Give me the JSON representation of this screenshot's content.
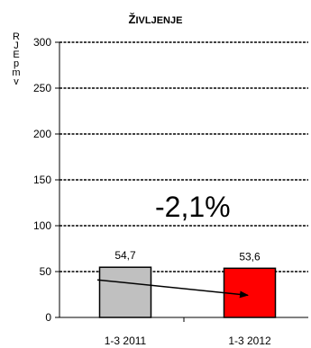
{
  "chart_data": {
    "type": "bar",
    "title": "Življenje",
    "ylabel": "RJEpmv",
    "categories": [
      "1-3 2011",
      "1-3 2012"
    ],
    "values": [
      54.7,
      53.6
    ],
    "value_labels": [
      "54,7",
      "53,6"
    ],
    "ylim": [
      0,
      300
    ],
    "yticks": [
      0,
      50,
      100,
      150,
      200,
      250,
      300
    ],
    "gridlines": "dashed",
    "bar_colors": [
      "#c0c0c0",
      "#ff0000"
    ],
    "annotation": "-2,1%"
  }
}
